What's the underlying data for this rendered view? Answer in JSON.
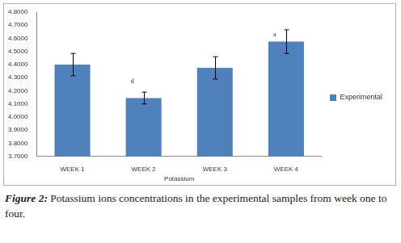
{
  "chart_data": {
    "type": "bar",
    "caption_label": "Figure 2:",
    "caption": "Potassium ions concentrations in the experimental samples from week one to four.",
    "x_label": "Potassium",
    "categories": [
      "WEEK 1",
      "WEEK 2",
      "WEEK 3",
      "WEEK 4"
    ],
    "series": [
      {
        "name": "Experimental",
        "color": "#4f81bd",
        "values": [
          4.4,
          4.145,
          4.375,
          4.575
        ],
        "errors": [
          0.085,
          0.045,
          0.085,
          0.09
        ]
      }
    ],
    "annotations": [
      {
        "text": "d",
        "category": "WEEK 2",
        "y": 4.27
      },
      {
        "text": "a",
        "category": "WEEK 4",
        "y": 4.63
      }
    ],
    "ylim": [
      3.7,
      4.8
    ],
    "yticks": [
      {
        "value": 3.7,
        "label": "3.7000"
      },
      {
        "value": 3.8,
        "label": "3.8000"
      },
      {
        "value": 3.9,
        "label": "3.9000"
      },
      {
        "value": 4.0,
        "label": "4.0000"
      },
      {
        "value": 4.1,
        "label": "4.1000"
      },
      {
        "value": 4.2,
        "label": "4.2000"
      },
      {
        "value": 4.3,
        "label": "4.3000"
      },
      {
        "value": 4.4,
        "label": "4.4000"
      },
      {
        "value": 4.5,
        "label": "4.5000"
      },
      {
        "value": 4.6,
        "label": "4.6000"
      },
      {
        "value": 4.7,
        "label": "4.7000"
      },
      {
        "value": 4.8,
        "label": "4.8000"
      }
    ],
    "grid": false,
    "legend": "right"
  }
}
